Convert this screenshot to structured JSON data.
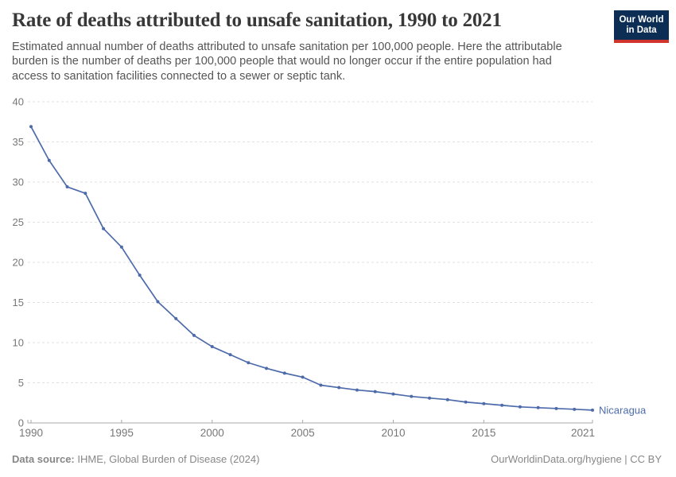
{
  "header": {
    "title": "Rate of deaths attributed to unsafe sanitation, 1990 to 2021",
    "subtitle": "Estimated annual number of deaths attributed to unsafe sanitation per 100,000 people. Here the attributable burden is the number of deaths per 100,000 people that would no longer occur if the entire population had access to sanitation facilities connected to a sewer or septic tank.",
    "logo": {
      "line1": "Our World",
      "line2": "in Data",
      "bg_color": "#0d2e54",
      "accent_color": "#d0342c"
    }
  },
  "chart_data": {
    "type": "line",
    "title": "Rate of deaths attributed to unsafe sanitation, 1990 to 2021",
    "x": [
      1990,
      1991,
      1992,
      1993,
      1994,
      1995,
      1996,
      1997,
      1998,
      1999,
      2000,
      2001,
      2002,
      2003,
      2004,
      2005,
      2006,
      2007,
      2008,
      2009,
      2010,
      2011,
      2012,
      2013,
      2014,
      2015,
      2016,
      2017,
      2018,
      2019,
      2020,
      2021
    ],
    "series": [
      {
        "name": "Nicaragua",
        "color": "#4d6baa",
        "values": [
          36.9,
          32.7,
          29.4,
          28.6,
          24.2,
          21.9,
          18.4,
          15.1,
          13.0,
          10.9,
          9.5,
          8.5,
          7.5,
          6.8,
          6.2,
          5.7,
          4.7,
          4.4,
          4.1,
          3.9,
          3.6,
          3.3,
          3.1,
          2.9,
          2.6,
          2.4,
          2.2,
          2.0,
          1.9,
          1.8,
          1.7,
          1.6
        ]
      }
    ],
    "xlabel": "",
    "ylabel": "",
    "ylim": [
      0,
      40
    ],
    "yticks": [
      0,
      5,
      10,
      15,
      20,
      25,
      30,
      35,
      40
    ],
    "xticks": [
      1990,
      1995,
      2000,
      2005,
      2010,
      2015,
      2021
    ],
    "grid": "horizontal-dashed",
    "legend_position": "line-end-label",
    "end_label": "Nicaragua",
    "axis_color": "#a8a8a8",
    "grid_color": "#e0e0e0",
    "tick_label_color": "#777777"
  },
  "footer": {
    "source_label": "Data source:",
    "source_value": " IHME, Global Burden of Disease (2024)",
    "credit": "OurWorldinData.org/hygiene | CC BY"
  }
}
